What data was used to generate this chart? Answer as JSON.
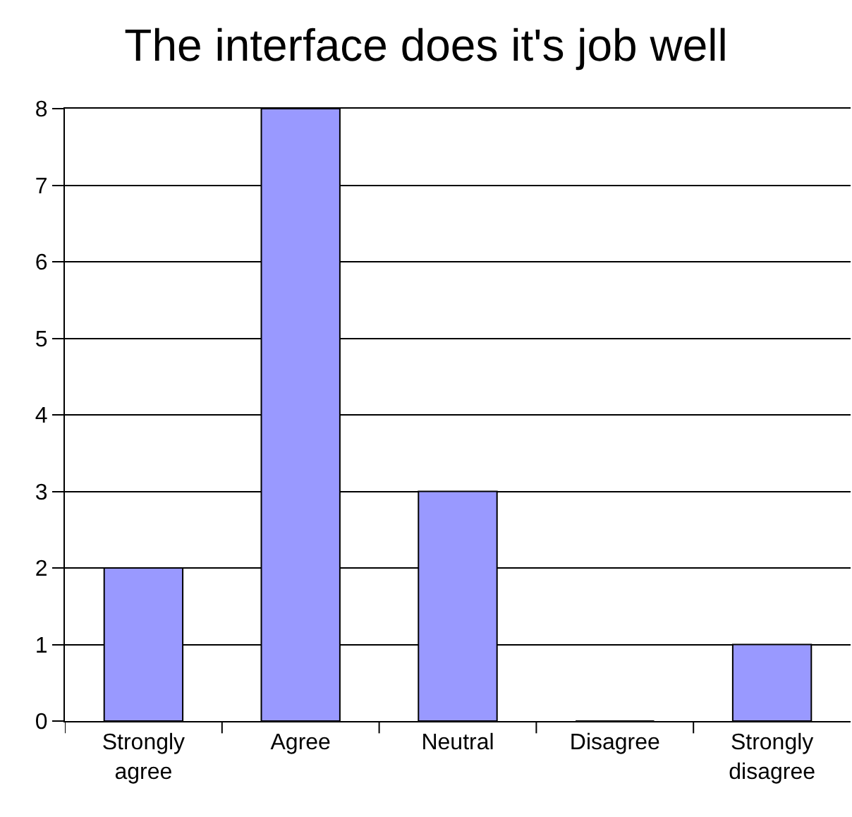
{
  "chart_data": {
    "type": "bar",
    "title": "The interface does it's job well",
    "categories": [
      "Strongly agree",
      "Agree",
      "Neutral",
      "Disagree",
      "Strongly disagree"
    ],
    "values": [
      2,
      8,
      3,
      0,
      1
    ],
    "color": "#9999ff",
    "ylim": [
      0,
      8
    ],
    "yticks": [
      0,
      1,
      2,
      3,
      4,
      5,
      6,
      7,
      8
    ],
    "grid": "y"
  }
}
